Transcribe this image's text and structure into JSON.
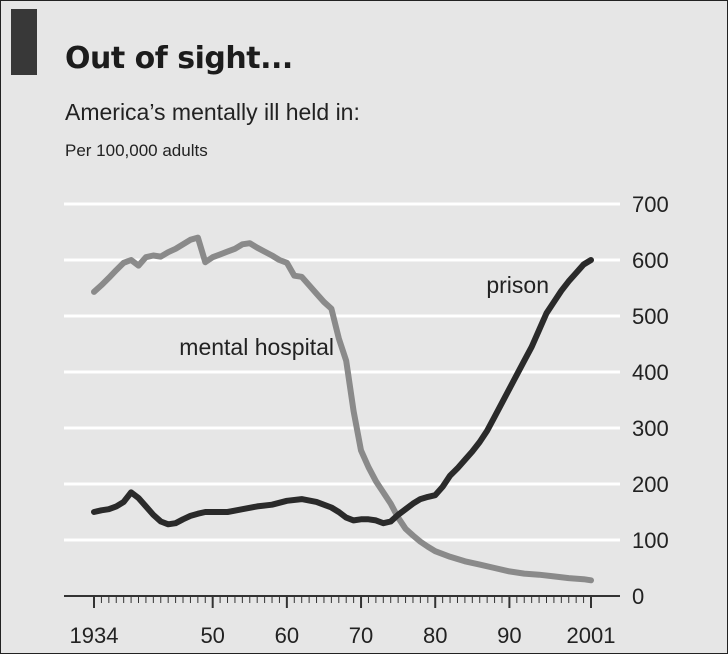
{
  "chart_data": {
    "type": "line",
    "title": "Out of sight...",
    "subtitle": "America’s mentally ill held in:",
    "unit": "Per 100,000 adults",
    "xlim": [
      1934,
      2001
    ],
    "ylim": [
      0,
      700
    ],
    "y_ticks": [
      0,
      100,
      200,
      300,
      400,
      500,
      600,
      700
    ],
    "x_ticks": [
      {
        "value": 1934,
        "label": "1934"
      },
      {
        "value": 1950,
        "label": "50"
      },
      {
        "value": 1960,
        "label": "60"
      },
      {
        "value": 1970,
        "label": "70"
      },
      {
        "value": 1980,
        "label": "80"
      },
      {
        "value": 1990,
        "label": "90"
      },
      {
        "value": 2001,
        "label": "2001"
      }
    ],
    "y_axis_side": "right",
    "grid": true,
    "legend": "none",
    "series": [
      {
        "name": "mental hospital",
        "color": "#8a8a8a",
        "x": [
          1934,
          1935,
          1936,
          1937,
          1938,
          1939,
          1940,
          1941,
          1942,
          1943,
          1944,
          1945,
          1946,
          1947,
          1948,
          1949,
          1950,
          1951,
          1952,
          1953,
          1954,
          1955,
          1956,
          1957,
          1958,
          1959,
          1960,
          1961,
          1962,
          1963,
          1964,
          1965,
          1966,
          1967,
          1968,
          1969,
          1970,
          1971,
          1972,
          1973,
          1974,
          1975,
          1976,
          1977,
          1978,
          1979,
          1980,
          1982,
          1984,
          1986,
          1988,
          1990,
          1992,
          1994,
          1996,
          1998,
          2000,
          2001
        ],
        "values": [
          543,
          555,
          568,
          582,
          595,
          600,
          590,
          605,
          608,
          606,
          614,
          620,
          628,
          636,
          640,
          596,
          605,
          610,
          615,
          620,
          628,
          630,
          622,
          615,
          608,
          600,
          595,
          572,
          570,
          555,
          540,
          525,
          513,
          460,
          420,
          330,
          260,
          230,
          205,
          185,
          165,
          140,
          120,
          108,
          97,
          88,
          80,
          70,
          62,
          56,
          50,
          44,
          40,
          38,
          35,
          32,
          30,
          28
        ]
      },
      {
        "name": "prison",
        "color": "#2a2a2a",
        "x": [
          1934,
          1935,
          1936,
          1937,
          1938,
          1939,
          1940,
          1941,
          1942,
          1943,
          1944,
          1945,
          1946,
          1947,
          1948,
          1949,
          1950,
          1952,
          1954,
          1956,
          1958,
          1960,
          1962,
          1964,
          1966,
          1967,
          1968,
          1969,
          1970,
          1971,
          1972,
          1973,
          1974,
          1975,
          1976,
          1977,
          1978,
          1979,
          1980,
          1981,
          1982,
          1983,
          1984,
          1985,
          1986,
          1987,
          1988,
          1989,
          1990,
          1991,
          1992,
          1993,
          1994,
          1995,
          1996,
          1997,
          1998,
          1999,
          2000,
          2001
        ],
        "values": [
          150,
          153,
          155,
          160,
          168,
          185,
          175,
          160,
          145,
          133,
          128,
          130,
          137,
          143,
          147,
          150,
          150,
          150,
          155,
          160,
          163,
          170,
          173,
          168,
          158,
          150,
          140,
          135,
          137,
          137,
          135,
          130,
          133,
          145,
          155,
          165,
          173,
          177,
          180,
          195,
          215,
          228,
          243,
          258,
          275,
          295,
          320,
          345,
          370,
          395,
          420,
          445,
          475,
          505,
          525,
          545,
          562,
          577,
          592,
          600
        ]
      }
    ],
    "annotations": [
      {
        "text": "mental hospital"
      },
      {
        "text": "prison"
      }
    ]
  }
}
